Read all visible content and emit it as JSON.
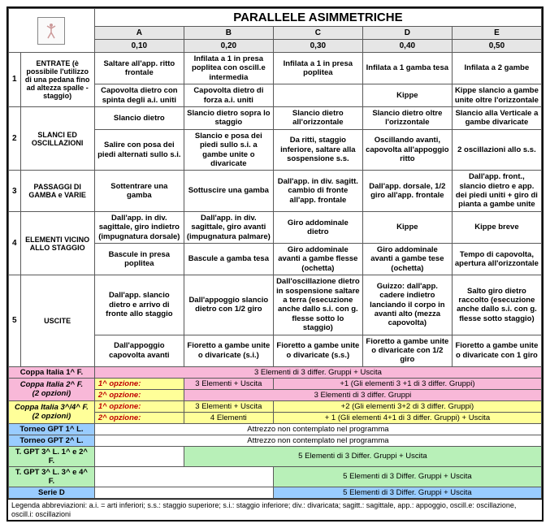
{
  "title": "PARALLELE ASIMMETRICHE",
  "columns": [
    "A",
    "B",
    "C",
    "D",
    "E"
  ],
  "scores": [
    "0,10",
    "0,20",
    "0,30",
    "0,40",
    "0,50"
  ],
  "rows": [
    {
      "num": "1",
      "label": "ENTRATE (è possibile l'utilizzo di una pedana fino ad altezza spalle - staggio)",
      "cells": [
        [
          "Saltare all'app. ritto frontale",
          "Capovolta dietro con spinta degli a.i. uniti"
        ],
        [
          "Infilata a 1 in presa poplitea con oscill.e intermedia",
          "Capovolta dietro di forza a.i. uniti"
        ],
        [
          "Infilata a 1 in presa poplitea",
          ""
        ],
        [
          "Infilata a 1 gamba tesa",
          "Kippe"
        ],
        [
          "Infilata a 2 gambe",
          "Kippe slancio a gambe unite oltre l'orizzontale"
        ]
      ]
    },
    {
      "num": "2",
      "label": "SLANCI ED OSCILLAZIONI",
      "cells": [
        [
          "Slancio dietro",
          "Salire con posa dei piedi alternati sullo s.i."
        ],
        [
          "Slancio dietro sopra lo staggio",
          "Slancio e posa dei piedi sullo s.i. a gambe unite o divaricate"
        ],
        [
          "Slancio dietro all'orizzontale",
          "Da ritti, staggio inferiore, saltare alla sospensione s.s."
        ],
        [
          "Slancio dietro oltre l'orizzontale",
          "Oscillando avanti, capovolta all'appoggio ritto"
        ],
        [
          "Slancio alla Verticale a gambe divaricate",
          "2 oscillazioni allo s.s."
        ]
      ]
    },
    {
      "num": "3",
      "label": "PASSAGGI DI GAMBA e VARIE",
      "cells": [
        [
          "Sottentrare una gamba"
        ],
        [
          "Sottuscire una gamba"
        ],
        [
          "Dall'app. in div. sagitt. cambio di fronte all'app. frontale"
        ],
        [
          "Dall'app. dorsale, 1/2 giro all'app. frontale"
        ],
        [
          "Dall'app. front., slancio dietro e app. dei piedi uniti + giro di pianta a gambe unite"
        ]
      ]
    },
    {
      "num": "4",
      "label": "ELEMENTI VICINO ALLO STAGGIO",
      "cells": [
        [
          "Dall'app. in div. sagittale, giro indietro (impugnatura dorsale)",
          "Bascule in presa poplitea"
        ],
        [
          "Dall'app. in div. sagittale, giro avanti (impugnatura palmare)",
          "Bascule a gamba tesa"
        ],
        [
          "Giro addominale dietro",
          "Giro addominale avanti a gambe flesse (ochetta)"
        ],
        [
          "Kippe",
          "Giro addominale avanti a gambe tese (ochetta)"
        ],
        [
          "Kippe breve",
          "Tempo di capovolta, apertura all'orizzontale"
        ]
      ]
    },
    {
      "num": "5",
      "label": "USCITE",
      "cells": [
        [
          "Dall'app. slancio dietro e arrivo di fronte allo staggio",
          "Dall'appoggio capovolta avanti"
        ],
        [
          "Dall'appoggio slancio dietro con 1/2 giro",
          "Fioretto a gambe unite o divaricate (s.i.)"
        ],
        [
          "Dall'oscillazione dietro in sospensione saltare a terra (esecuzione anche dallo s.i. con g. flesse sotto lo staggio)",
          "Fioretto a gambe unite o divaricate (s.s.)"
        ],
        [
          "Guizzo: dall'app. cadere indietro lanciando il corpo in avanti alto (mezza capovolta)",
          "Fioretto a gambe unite o divaricate con 1/2 giro"
        ],
        [
          "Salto giro dietro raccolto (esecuzione anche dallo s.i. con g. flesse sotto staggio)",
          "Fioretto a gambe unite o divaricate con 1 giro"
        ]
      ]
    }
  ],
  "footer": [
    {
      "label": "Coppa Italia 1^ F.",
      "bg": "pink",
      "cells": [
        {
          "span": 5,
          "text": "3 Elementi di 3 differ. Gruppi + Uscita",
          "bg": "pink"
        }
      ]
    },
    {
      "label": "Coppa Italia 2^ F. (2 opzioni)",
      "bg": "pink",
      "rowspan": 2,
      "cells_rows": [
        [
          {
            "span": 1,
            "text": "1^ opzione:",
            "bg": "yellow",
            "red": true,
            "italic": true,
            "align": "left"
          },
          {
            "span": 1,
            "text": "3 Elementi + Uscita",
            "bg": "pink"
          },
          {
            "span": 3,
            "text": "+1  (Gli elementi 3 +1 di 3 differ. Gruppi)",
            "bg": "pink"
          }
        ],
        [
          {
            "span": 1,
            "text": "2^ opzione:",
            "bg": "yellow",
            "red": true,
            "italic": true,
            "align": "left"
          },
          {
            "span": 4,
            "text": "3 Elementi di 3 differ. Gruppi",
            "bg": "pink"
          }
        ]
      ]
    },
    {
      "label": "Coppa Italia 3^/4^ F. (2 opzioni)",
      "bg": "yellow",
      "rowspan": 2,
      "cells_rows": [
        [
          {
            "span": 1,
            "text": "1^ opzione:",
            "bg": "yellow",
            "red": true,
            "italic": true,
            "align": "left"
          },
          {
            "span": 1,
            "text": "3 Elementi + Uscita",
            "bg": "yellow"
          },
          {
            "span": 3,
            "text": "+2 (Gli elementi 3+2 di 3 differ. Gruppi)",
            "bg": "yellow"
          }
        ],
        [
          {
            "span": 1,
            "text": "2^ opzione:",
            "bg": "yellow",
            "red": true,
            "italic": true,
            "align": "left"
          },
          {
            "span": 1,
            "text": "4 Elementi",
            "bg": "yellow"
          },
          {
            "span": 3,
            "text": "+ 1 (Gli elementi 4+1 di 3 differ. Gruppi) + Uscita",
            "bg": "yellow"
          }
        ]
      ]
    },
    {
      "label": "Torneo GPT 1^ L.",
      "bg": "blue",
      "cells": [
        {
          "span": 5,
          "text": "Attrezzo non contemplato nel programma",
          "bg": "white"
        }
      ]
    },
    {
      "label": "Torneo GPT 2^ L.",
      "bg": "blue",
      "cells": [
        {
          "span": 5,
          "text": "Attrezzo non contemplato nel programma",
          "bg": "white"
        }
      ]
    },
    {
      "label": "T. GPT 3^ L. 1^ e 2^ F.",
      "bg": "green",
      "cells": [
        {
          "span": 1,
          "text": "",
          "bg": "white"
        },
        {
          "span": 4,
          "text": "5 Elementi di 3 Differ. Gruppi + Uscita",
          "bg": "green"
        }
      ]
    },
    {
      "label": "T. GPT 3^ L. 3^ e 4^ F.",
      "bg": "green",
      "cells": [
        {
          "span": 2,
          "text": "",
          "bg": "white"
        },
        {
          "span": 3,
          "text": "5 Elementi di 3 Differ. Gruppi + Uscita",
          "bg": "green"
        }
      ]
    },
    {
      "label": "Serie D",
      "bg": "blue",
      "cells": [
        {
          "span": 2,
          "text": "",
          "bg": "white"
        },
        {
          "span": 3,
          "text": "5 Elementi di 3 Differ. Gruppi + Uscita",
          "bg": "blue"
        }
      ]
    }
  ],
  "legend": "Legenda abbreviazioni: a.i. = arti inferiori; s.s.: staggio superiore; s.i.: staggio inferiore; div.: divaricata; sagitt.: sagittale, app.: appoggio, oscill.e: oscillazione, oscill.i: oscillazioni",
  "colors": {
    "pink": "#f8b8d8",
    "yellow": "#ffff99",
    "blue": "#99ccff",
    "green": "#b8f0b8",
    "white": "#ffffff",
    "grey": "#e6e6e6"
  }
}
